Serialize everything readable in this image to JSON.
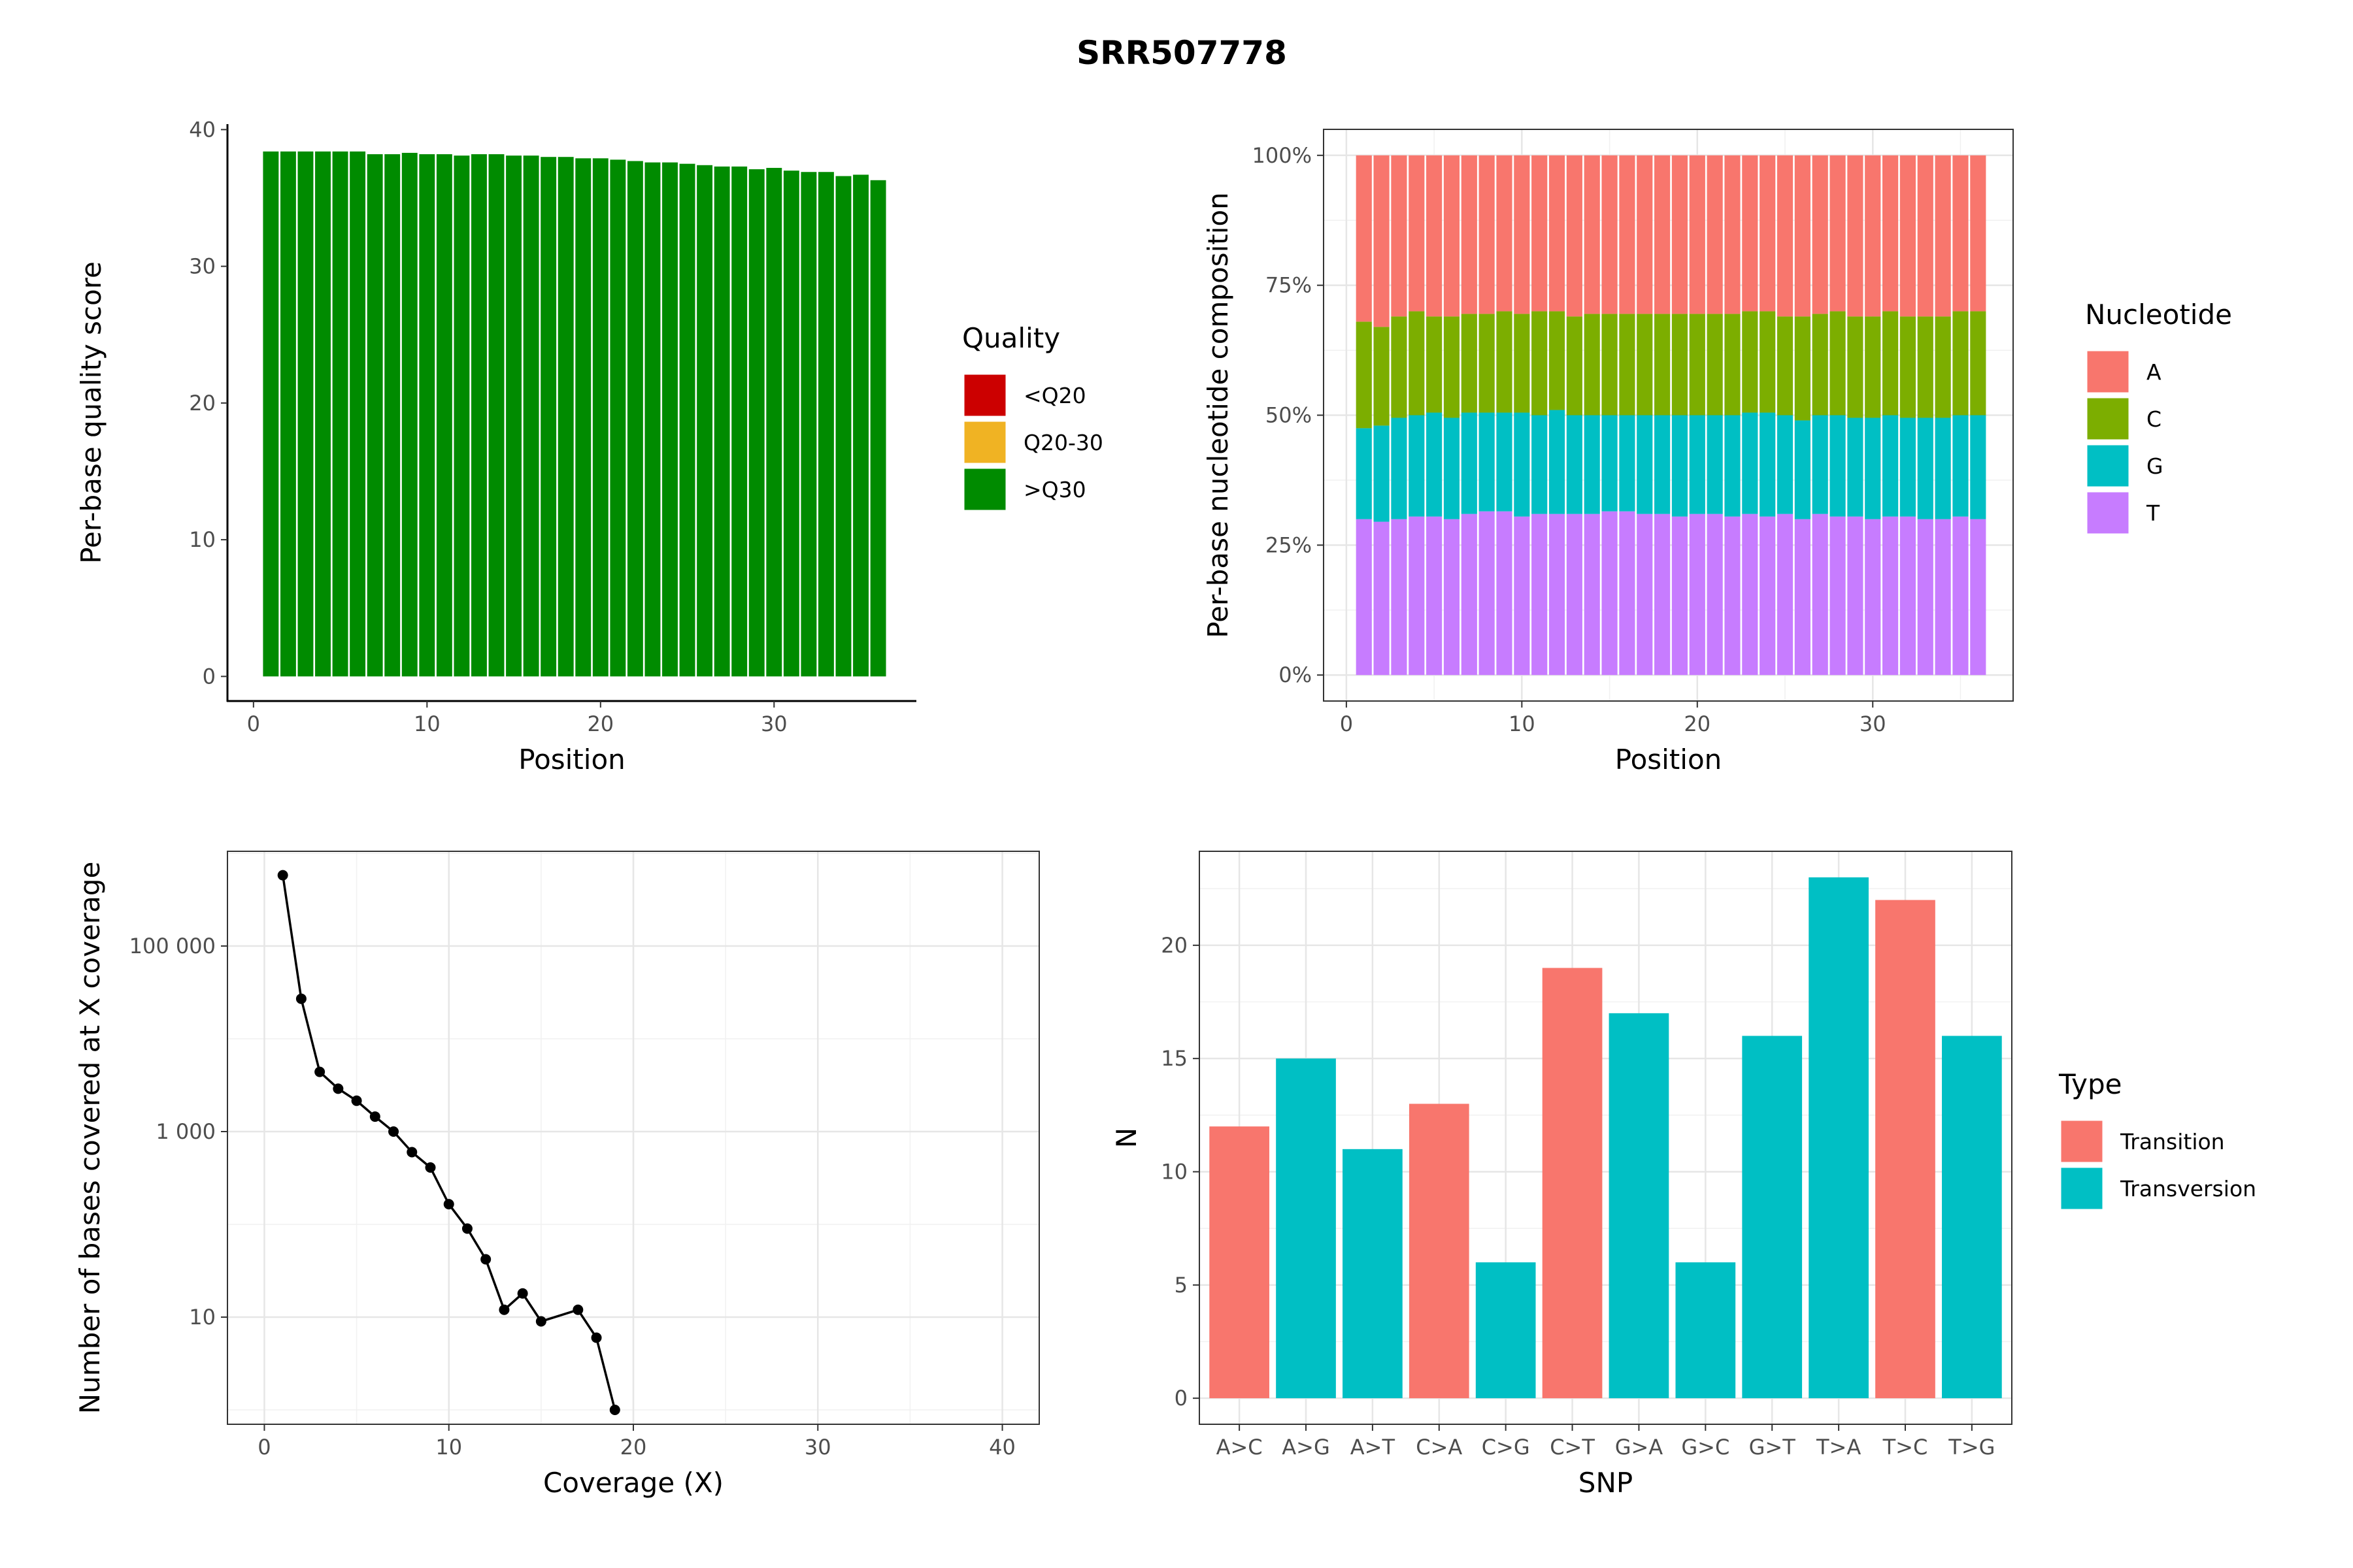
{
  "title": "SRR507778",
  "chart_data": [
    {
      "id": "quality",
      "type": "bar",
      "xlabel": "Position",
      "ylabel": "Per-base quality score",
      "xlim": [
        -1.5,
        38.2
      ],
      "ylim": [
        -1.8,
        40.4
      ],
      "xticks": [
        0,
        10,
        20,
        30
      ],
      "yticks": [
        0,
        10,
        20,
        30,
        40
      ],
      "grid": false,
      "legend": {
        "title": "Quality",
        "position": "right",
        "entries": [
          {
            "label": "<Q20",
            "color": "#CC0000"
          },
          {
            "label": "Q20-30",
            "color": "#F0B323"
          },
          {
            "label": ">Q30",
            "color": "#008B00"
          }
        ]
      },
      "x": [
        1,
        2,
        3,
        4,
        5,
        6,
        7,
        8,
        9,
        10,
        11,
        12,
        13,
        14,
        15,
        16,
        17,
        18,
        19,
        20,
        21,
        22,
        23,
        24,
        25,
        26,
        27,
        28,
        29,
        30,
        31,
        32,
        33,
        34,
        35,
        36
      ],
      "values": [
        38.4,
        38.4,
        38.4,
        38.4,
        38.4,
        38.4,
        38.2,
        38.2,
        38.3,
        38.2,
        38.2,
        38.1,
        38.2,
        38.2,
        38.1,
        38.1,
        38.0,
        38.0,
        37.9,
        37.9,
        37.8,
        37.7,
        37.6,
        37.6,
        37.5,
        37.4,
        37.3,
        37.3,
        37.1,
        37.2,
        37.0,
        36.9,
        36.9,
        36.6,
        36.7,
        36.3
      ],
      "bar_color": "#008B00"
    },
    {
      "id": "composition",
      "type": "bar",
      "stacked": true,
      "xlabel": "Position",
      "ylabel": "Per-base nucleotide composition",
      "xlim": [
        -1.3,
        38.0
      ],
      "ylim": [
        -0.05,
        1.05
      ],
      "xticks": [
        0,
        10,
        20,
        30
      ],
      "yticks": [
        0,
        0.25,
        0.5,
        0.75,
        1
      ],
      "ytick_labels": [
        "0%",
        "25%",
        "50%",
        "75%",
        "100%"
      ],
      "grid": true,
      "legend": {
        "title": "Nucleotide",
        "position": "right"
      },
      "x": [
        1,
        2,
        3,
        4,
        5,
        6,
        7,
        8,
        9,
        10,
        11,
        12,
        13,
        14,
        15,
        16,
        17,
        18,
        19,
        20,
        21,
        22,
        23,
        24,
        25,
        26,
        27,
        28,
        29,
        30,
        31,
        32,
        33,
        34,
        35,
        36
      ],
      "series": [
        {
          "name": "T",
          "color": "#C77CFF",
          "values": [
            0.3,
            0.295,
            0.3,
            0.305,
            0.305,
            0.3,
            0.31,
            0.315,
            0.315,
            0.305,
            0.31,
            0.31,
            0.31,
            0.31,
            0.315,
            0.315,
            0.31,
            0.31,
            0.305,
            0.31,
            0.31,
            0.305,
            0.31,
            0.305,
            0.31,
            0.3,
            0.31,
            0.305,
            0.305,
            0.3,
            0.305,
            0.305,
            0.3,
            0.3,
            0.305,
            0.3
          ]
        },
        {
          "name": "G",
          "color": "#00BFC4",
          "values": [
            0.175,
            0.185,
            0.195,
            0.195,
            0.2,
            0.195,
            0.195,
            0.19,
            0.19,
            0.2,
            0.19,
            0.2,
            0.19,
            0.19,
            0.185,
            0.185,
            0.19,
            0.19,
            0.195,
            0.19,
            0.19,
            0.195,
            0.195,
            0.2,
            0.19,
            0.19,
            0.19,
            0.195,
            0.19,
            0.195,
            0.195,
            0.19,
            0.195,
            0.195,
            0.195,
            0.2
          ]
        },
        {
          "name": "C",
          "color": "#7CAE00",
          "values": [
            0.205,
            0.19,
            0.195,
            0.2,
            0.185,
            0.195,
            0.19,
            0.19,
            0.195,
            0.19,
            0.2,
            0.19,
            0.19,
            0.195,
            0.195,
            0.195,
            0.195,
            0.195,
            0.195,
            0.195,
            0.195,
            0.195,
            0.195,
            0.195,
            0.19,
            0.2,
            0.195,
            0.2,
            0.195,
            0.195,
            0.2,
            0.195,
            0.195,
            0.195,
            0.2,
            0.2
          ]
        },
        {
          "name": "A",
          "color": "#F8766D",
          "values": [
            0.32,
            0.33,
            0.31,
            0.3,
            0.31,
            0.31,
            0.305,
            0.305,
            0.3,
            0.305,
            0.3,
            0.3,
            0.31,
            0.305,
            0.305,
            0.305,
            0.305,
            0.305,
            0.305,
            0.305,
            0.305,
            0.305,
            0.3,
            0.3,
            0.31,
            0.31,
            0.305,
            0.3,
            0.31,
            0.31,
            0.3,
            0.31,
            0.31,
            0.31,
            0.3,
            0.3
          ]
        }
      ],
      "legend_order": [
        "A",
        "C",
        "G",
        "T"
      ]
    },
    {
      "id": "coverage",
      "type": "line",
      "xlabel": "Coverage (X)",
      "ylabel": "Number of bases covered at X coverage",
      "log_y": true,
      "xlim": [
        -2,
        42
      ],
      "ylim": [
        0.7,
        1050000
      ],
      "xticks": [
        0,
        10,
        20,
        30,
        40
      ],
      "yticks": [
        10,
        1000,
        100000
      ],
      "ytick_labels": [
        "10",
        "1 000",
        "100 000"
      ],
      "grid": true,
      "x": [
        1,
        2,
        3,
        4,
        5,
        6,
        7,
        8,
        9,
        10,
        11,
        12,
        13,
        14,
        15,
        17,
        18,
        19
      ],
      "values": [
        580000,
        27000,
        4400,
        2900,
        2150,
        1450,
        1000,
        600,
        410,
        165,
        90,
        42,
        12,
        18,
        9,
        12,
        6,
        1
      ]
    },
    {
      "id": "snp",
      "type": "bar",
      "xlabel": "SNP",
      "ylabel": "N",
      "ylim": [
        -1.15,
        24.15
      ],
      "yticks": [
        0,
        5,
        10,
        15,
        20
      ],
      "grid": true,
      "legend": {
        "title": "Type",
        "position": "right",
        "entries": [
          {
            "label": "Transition",
            "color": "#F8766D"
          },
          {
            "label": "Transversion",
            "color": "#00BFC4"
          }
        ]
      },
      "categories": [
        "A>C",
        "A>G",
        "A>T",
        "C>A",
        "C>G",
        "C>T",
        "G>A",
        "G>C",
        "G>T",
        "T>A",
        "T>C",
        "T>G"
      ],
      "values": [
        12,
        15,
        11,
        13,
        6,
        19,
        17,
        6,
        16,
        23,
        22,
        16
      ],
      "types": [
        "Transition",
        "Transversion",
        "Transversion",
        "Transition",
        "Transversion",
        "Transition",
        "Transversion",
        "Transversion",
        "Transversion",
        "Transversion",
        "Transition",
        "Transversion"
      ]
    }
  ]
}
